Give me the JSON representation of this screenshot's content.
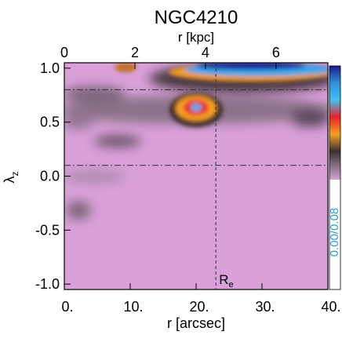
{
  "chart_data": {
    "type": "heatmap",
    "title": "NGC4210",
    "xlabel": "r [arcsec]",
    "x2label": "r [kpc]",
    "ylabel": [
      "λ",
      "z"
    ],
    "xlim": [
      0,
      40
    ],
    "xticks": [
      {
        "value": 0,
        "label": "0."
      },
      {
        "value": 10,
        "label": "10."
      },
      {
        "value": 20,
        "label": "20."
      },
      {
        "value": 30,
        "label": "30."
      },
      {
        "value": 40,
        "label": "40."
      }
    ],
    "x2lim": [
      0,
      7.47
    ],
    "x2ticks": [
      0,
      2,
      4,
      6
    ],
    "ylim": [
      -1.05,
      1.05
    ],
    "yticks": [
      {
        "value": -1,
        "label": "-1.0"
      },
      {
        "value": -0.5,
        "label": "-0.5"
      },
      {
        "value": 0,
        "label": "0.0"
      },
      {
        "value": 0.5,
        "label": "0.5"
      },
      {
        "value": 1,
        "label": "1.0"
      }
    ],
    "hlines": [
      0.8,
      0.1
    ],
    "vline": {
      "value": 23,
      "label": [
        "R",
        "e"
      ]
    },
    "colorbar_label": "0.00/0.08"
  }
}
